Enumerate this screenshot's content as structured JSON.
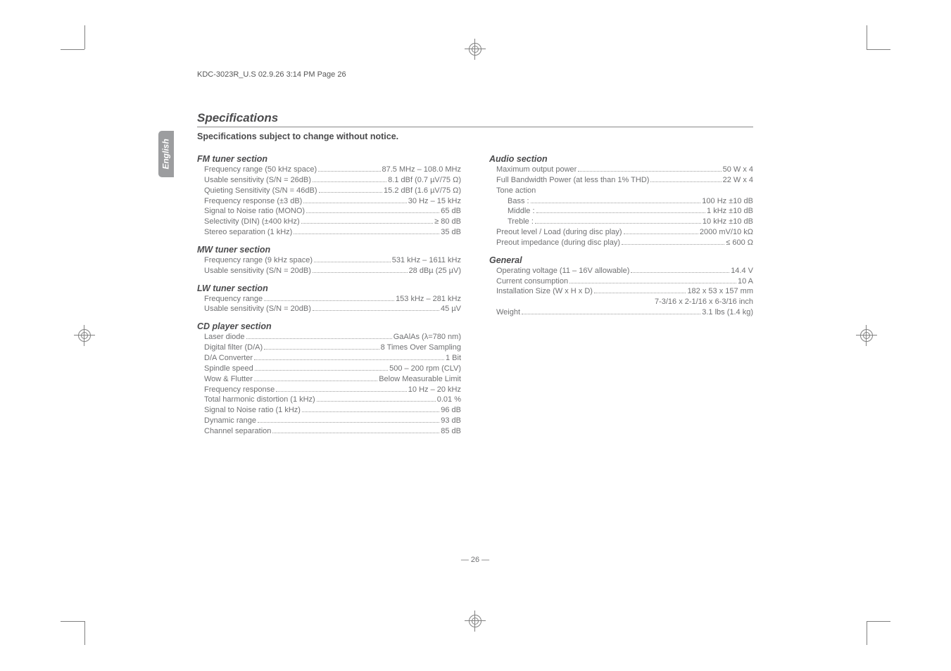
{
  "header_line": "KDC-3023R_U.S  02.9.26  3:14 PM  Page 26",
  "sidebar_label": "English",
  "title": "Specifications",
  "subtitle": "Specifications subject to change without notice.",
  "left": {
    "sections": [
      {
        "head": "FM tuner section",
        "rows": [
          {
            "label": "Frequency range (50 kHz space)",
            "value": "87.5 MHz – 108.0 MHz"
          },
          {
            "label": "Usable sensitivity (S/N = 26dB)",
            "value": "8.1 dBf (0.7 µV/75 Ω)"
          },
          {
            "label": "Quieting Sensitivity (S/N = 46dB)",
            "value": "15.2 dBf (1.6 µV/75 Ω)"
          },
          {
            "label": "Frequency response (±3 dB)",
            "value": "30 Hz – 15 kHz"
          },
          {
            "label": "Signal to Noise ratio (MONO)",
            "value": "65 dB"
          },
          {
            "label": "Selectivity (DIN) (±400 kHz)",
            "value": "≥ 80 dB"
          },
          {
            "label": "Stereo separation (1 kHz)",
            "value": "35 dB"
          }
        ]
      },
      {
        "head": "MW tuner section",
        "rows": [
          {
            "label": "Frequency range (9 kHz space)",
            "value": "531 kHz – 1611 kHz"
          },
          {
            "label": "Usable sensitivity (S/N = 20dB)",
            "value": "28 dBµ (25 µV)"
          }
        ]
      },
      {
        "head": "LW tuner section",
        "rows": [
          {
            "label": "Frequency range",
            "value": "153 kHz – 281 kHz"
          },
          {
            "label": "Usable sensitivity (S/N = 20dB)",
            "value": "45 µV"
          }
        ]
      },
      {
        "head": "CD player section",
        "rows": [
          {
            "label": "Laser diode",
            "value": "GaAlAs (λ=780 nm)"
          },
          {
            "label": "Digital filter (D/A)",
            "value": "8 Times Over Sampling"
          },
          {
            "label": "D/A Converter",
            "value": "1 Bit"
          },
          {
            "label": "Spindle speed",
            "value": "500 – 200 rpm (CLV)"
          },
          {
            "label": "Wow & Flutter",
            "value": "Below Measurable Limit"
          },
          {
            "label": "Frequency response",
            "value": "10 Hz – 20 kHz"
          },
          {
            "label": "Total harmonic distortion (1 kHz)",
            "value": "0.01 %"
          },
          {
            "label": "Signal to Noise ratio (1 kHz)",
            "value": "96 dB"
          },
          {
            "label": "Dynamic range",
            "value": "93 dB"
          },
          {
            "label": "Channel separation",
            "value": "85 dB"
          }
        ]
      }
    ]
  },
  "right": {
    "sections": [
      {
        "head": "Audio section",
        "rows": [
          {
            "label": "Maximum output power",
            "value": "50 W x 4"
          },
          {
            "label": "Full Bandwidth Power (at less than 1% THD)",
            "value": "22 W x 4"
          },
          {
            "label": "Tone action",
            "value": "",
            "nodots": true
          },
          {
            "label": "Bass :",
            "value": "100 Hz ±10 dB",
            "indent": true
          },
          {
            "label": "Middle :",
            "value": "1 kHz ±10 dB",
            "indent": true
          },
          {
            "label": "Treble :",
            "value": "10 kHz ±10 dB",
            "indent": true
          },
          {
            "label": "Preout level / Load (during disc play)",
            "value": "2000 mV/10 kΩ"
          },
          {
            "label": "Preout impedance (during disc play)",
            "value": "≤ 600 Ω"
          }
        ]
      },
      {
        "head": "General",
        "rows": [
          {
            "label": "Operating voltage (11 – 16V allowable)",
            "value": "14.4 V"
          },
          {
            "label": "Current consumption",
            "value": "10 A"
          },
          {
            "label": "Installation Size (W x H x D)",
            "value": "182 x 53 x 157 mm"
          },
          {
            "label": "",
            "value": "7-3/16 x 2-1/16 x 6-3/16 inch",
            "rightonly": true
          },
          {
            "label": "Weight",
            "value": "3.1 lbs (1.4 kg)"
          }
        ]
      }
    ]
  },
  "page_number": "— 26 —"
}
